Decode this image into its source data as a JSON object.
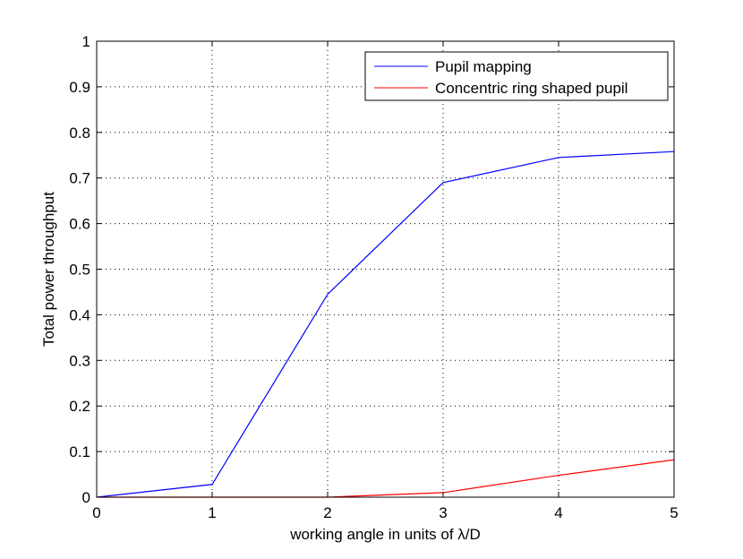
{
  "chart_data": {
    "type": "line",
    "title": "",
    "xlabel": "working angle in units of λ/D",
    "ylabel": "Total power throughput",
    "xlim": [
      0,
      5
    ],
    "ylim": [
      0,
      1
    ],
    "x_ticks": [
      "0",
      "1",
      "2",
      "3",
      "4",
      "5"
    ],
    "y_ticks": [
      "0",
      "0.1",
      "0.2",
      "0.3",
      "0.4",
      "0.5",
      "0.6",
      "0.7",
      "0.8",
      "0.9",
      "1"
    ],
    "grid": true,
    "legend_position": "top-right",
    "series": [
      {
        "name": "Pupil mapping",
        "color": "#0000ff",
        "x": [
          0,
          1,
          2,
          3,
          4,
          5
        ],
        "y": [
          0.0,
          0.028,
          0.445,
          0.69,
          0.745,
          0.758
        ]
      },
      {
        "name": "Concentric ring shaped pupil",
        "color": "#ff0000",
        "x": [
          0,
          1,
          2,
          3,
          4,
          5
        ],
        "y": [
          0.0,
          0.0,
          0.0,
          0.01,
          0.048,
          0.082
        ]
      }
    ]
  }
}
